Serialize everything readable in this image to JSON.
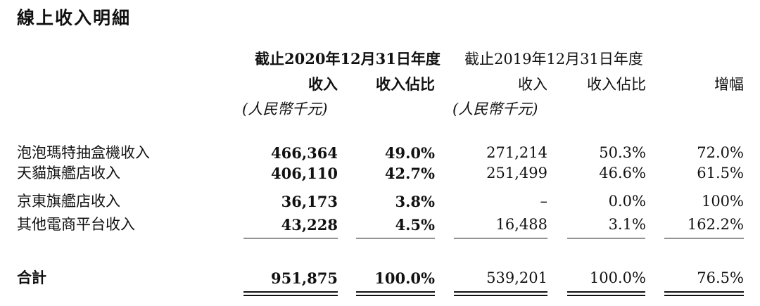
{
  "title": "線上收入明細",
  "periods": {
    "current": "截止2020年12月31日年度",
    "previous": "截止2019年12月31日年度"
  },
  "headers": {
    "revenue": "收入",
    "share": "收入佔比",
    "revenue_prev": "收入",
    "share_prev": "收入佔比",
    "growth": "增幅",
    "unit_current": "(人民幣千元)",
    "unit_previous": "(人民幣千元)"
  },
  "rows": [
    {
      "label": "泡泡瑪特抽盒機收入",
      "revenue_2020": "466,364",
      "share_2020": "49.0%",
      "revenue_2019": "271,214",
      "share_2019": "50.3%",
      "growth": "72.0%"
    },
    {
      "label": "天貓旗艦店收入",
      "revenue_2020": "406,110",
      "share_2020": "42.7%",
      "revenue_2019": "251,499",
      "share_2019": "46.6%",
      "growth": "61.5%"
    },
    {
      "label": "京東旗艦店收入",
      "revenue_2020": "36,173",
      "share_2020": "3.8%",
      "revenue_2019": "–",
      "share_2019": "0.0%",
      "growth": "100%"
    },
    {
      "label": "其他電商平台收入",
      "revenue_2020": "43,228",
      "share_2020": "4.5%",
      "revenue_2019": "16,488",
      "share_2019": "3.1%",
      "growth": "162.2%"
    }
  ],
  "total": {
    "label": "合計",
    "revenue_2020": "951,875",
    "share_2020": "100.0%",
    "revenue_2019": "539,201",
    "share_2019": "100.0%",
    "growth": "76.5%"
  }
}
